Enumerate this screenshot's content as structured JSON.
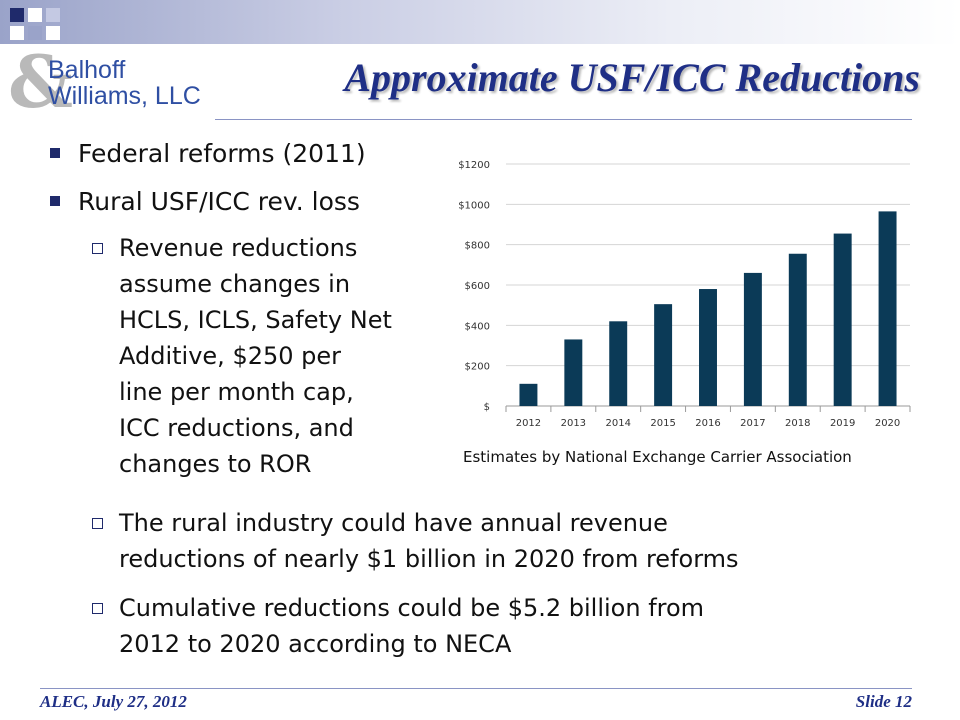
{
  "header": {
    "logo_line1": "Balhoff",
    "logo_line2": "Williams, LLC",
    "logo_mark": "&",
    "title": "Approximate USF/ICC Reductions"
  },
  "bullets": [
    "Federal reforms (2011)",
    "Rural USF/ICC rev. loss"
  ],
  "subbullets": [
    [
      "Revenue reductions",
      "assume changes in",
      "HCLS, ICLS, Safety Net",
      "Additive, $250 per",
      "line per month cap,",
      "ICC reductions, and",
      "changes to ROR"
    ],
    [
      "The rural industry could have annual revenue",
      "reductions of nearly $1 billion in 2020 from reforms"
    ],
    [
      "Cumulative reductions could be $5.2 billion from",
      "2012 to 2020 according to NECA"
    ]
  ],
  "chart_data": {
    "type": "bar",
    "categories": [
      "2012",
      "2013",
      "2014",
      "2015",
      "2016",
      "2017",
      "2018",
      "2019",
      "2020"
    ],
    "values": [
      110,
      330,
      420,
      505,
      580,
      660,
      755,
      855,
      965
    ],
    "ylim": [
      0,
      1200
    ],
    "yticks": [
      0,
      200,
      400,
      600,
      800,
      1000,
      1200
    ],
    "ytick_labels": [
      "$",
      "$200",
      "$400",
      "$600",
      "$800",
      "$1000",
      "$1200"
    ],
    "grid": true,
    "bar_color": "#0b3a57",
    "source": "Estimates by National Exchange Carrier Association"
  },
  "footer": {
    "left": "ALEC, July 27, 2012",
    "right": "Slide 12"
  }
}
